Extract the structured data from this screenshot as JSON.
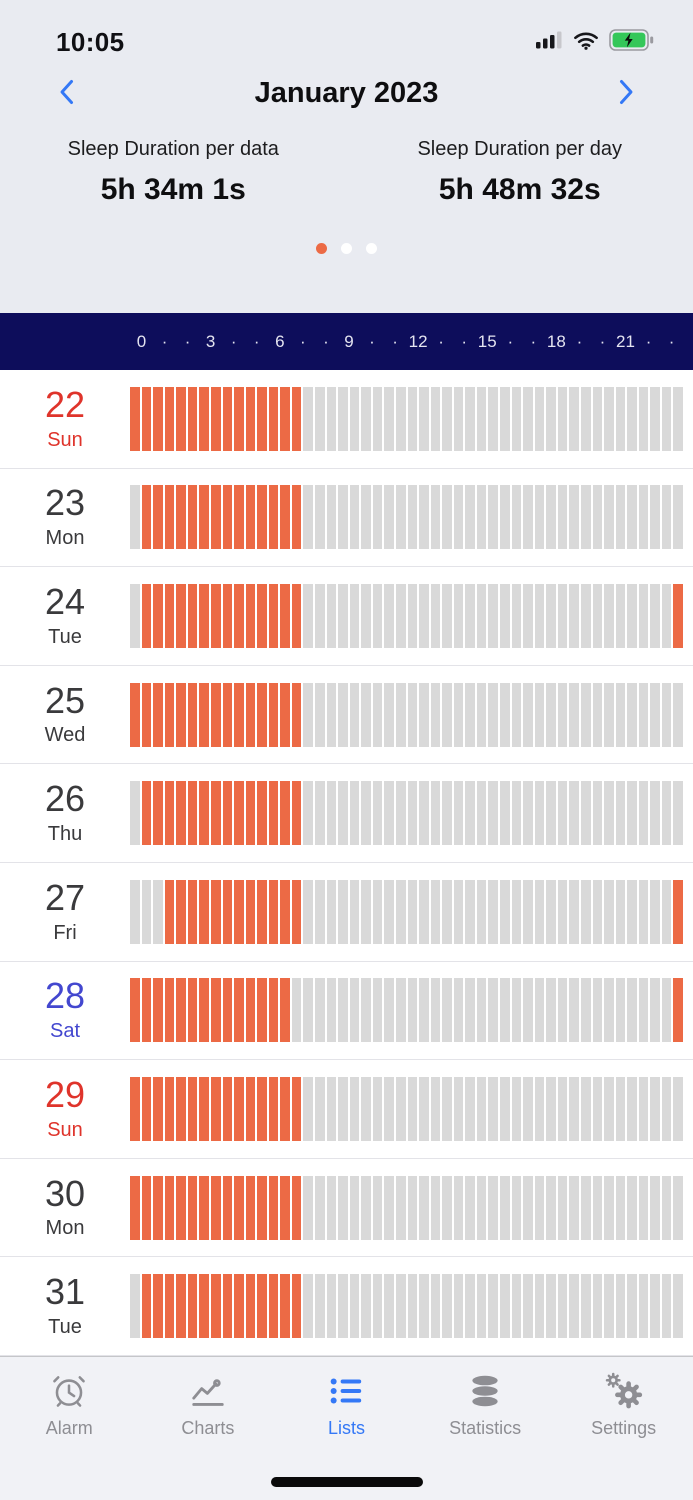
{
  "status_bar": {
    "time": "10:05",
    "icons": [
      {
        "name": "cellular-signal-icon"
      },
      {
        "name": "wifi-icon"
      },
      {
        "name": "battery-charging-icon"
      }
    ]
  },
  "header": {
    "title": "January 2023"
  },
  "stats": [
    {
      "label": "Sleep Duration per data",
      "value": "5h 34m 1s"
    },
    {
      "label": "Sleep Duration per day",
      "value": "5h 48m 32s"
    }
  ],
  "page_dots": {
    "count": 3,
    "active_index": 0
  },
  "axis": {
    "tokens": [
      "0",
      "·",
      "·",
      "3",
      "·",
      "·",
      "6",
      "·",
      "·",
      "9",
      "·",
      "·",
      "12",
      "·",
      "·",
      "15",
      "·",
      "·",
      "18",
      "·",
      "·",
      "21",
      "·",
      "·"
    ]
  },
  "chart_data": {
    "type": "bar",
    "description": "Half-hour sleep segments per day (00:00–24:00); orange = asleep, gray = awake",
    "segments_per_day": 48,
    "hour_ticks": [
      0,
      3,
      6,
      9,
      12,
      15,
      18,
      21
    ],
    "rows": [
      {
        "day": "22",
        "weekday": "Sun",
        "label_color": "red",
        "sleep_ranges": [
          [
            0,
            15
          ]
        ]
      },
      {
        "day": "23",
        "weekday": "Mon",
        "label_color": "default",
        "sleep_ranges": [
          [
            1,
            15
          ]
        ]
      },
      {
        "day": "24",
        "weekday": "Tue",
        "label_color": "default",
        "sleep_ranges": [
          [
            1,
            15
          ],
          [
            47,
            48
          ]
        ]
      },
      {
        "day": "25",
        "weekday": "Wed",
        "label_color": "default",
        "sleep_ranges": [
          [
            0,
            15
          ]
        ]
      },
      {
        "day": "26",
        "weekday": "Thu",
        "label_color": "default",
        "sleep_ranges": [
          [
            1,
            15
          ]
        ]
      },
      {
        "day": "27",
        "weekday": "Fri",
        "label_color": "default",
        "sleep_ranges": [
          [
            3,
            15
          ],
          [
            47,
            48
          ]
        ]
      },
      {
        "day": "28",
        "weekday": "Sat",
        "label_color": "blue",
        "sleep_ranges": [
          [
            0,
            14
          ],
          [
            47,
            48
          ]
        ]
      },
      {
        "day": "29",
        "weekday": "Sun",
        "label_color": "red",
        "sleep_ranges": [
          [
            0,
            15
          ]
        ]
      },
      {
        "day": "30",
        "weekday": "Mon",
        "label_color": "default",
        "sleep_ranges": [
          [
            0,
            15
          ]
        ]
      },
      {
        "day": "31",
        "weekday": "Tue",
        "label_color": "default",
        "sleep_ranges": [
          [
            1,
            15
          ]
        ]
      }
    ]
  },
  "tab_bar": {
    "active": "Lists",
    "tabs": [
      {
        "label": "Alarm",
        "icon": "alarm-icon"
      },
      {
        "label": "Charts",
        "icon": "charts-icon"
      },
      {
        "label": "Lists",
        "icon": "lists-icon"
      },
      {
        "label": "Statistics",
        "icon": "statistics-icon"
      },
      {
        "label": "Settings",
        "icon": "settings-icon"
      }
    ]
  },
  "colors": {
    "accent_orange": "#EC6A45",
    "awake_gray": "#D9D9D9",
    "navy": "#0D0D5B",
    "sunday_red": "#DF342B",
    "saturday_blue": "#4347CF",
    "ios_blue": "#3478F6",
    "tab_inactive": "#8E8E93",
    "top_bg": "#E9EBF1",
    "tabbar_bg": "#F1F2F6"
  }
}
